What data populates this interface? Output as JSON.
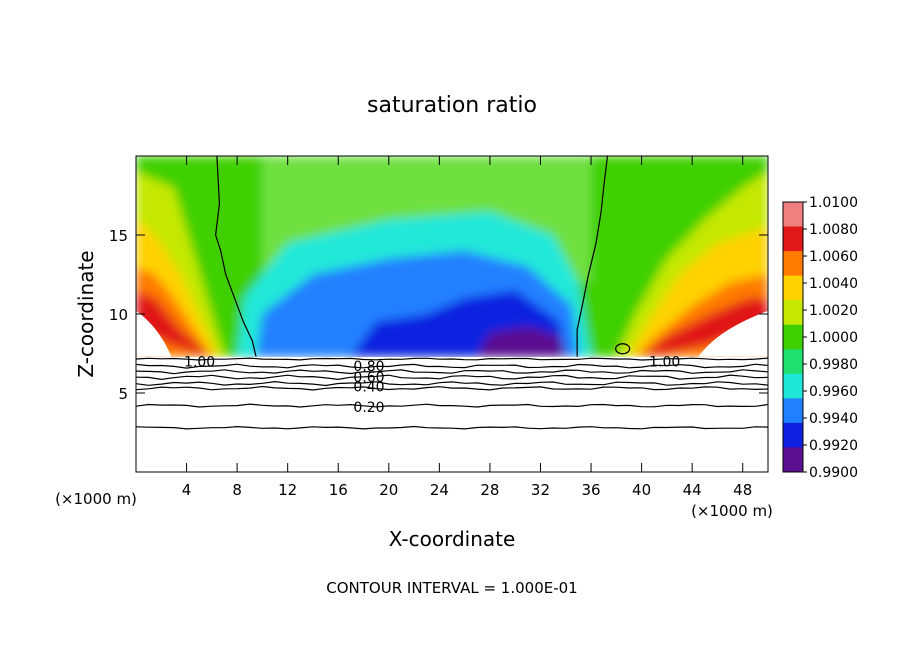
{
  "chart_data": {
    "type": "heatmap",
    "title": "saturation ratio",
    "xlabel": "X-coordinate",
    "ylabel": "Z-coordinate",
    "x_unit": "(×1000 m)",
    "xlim": [
      0,
      50
    ],
    "ylim": [
      0,
      20
    ],
    "x_ticks": [
      4,
      8,
      12,
      16,
      20,
      24,
      28,
      32,
      36,
      40,
      44,
      48
    ],
    "y_ticks": [
      5,
      10,
      15
    ],
    "footer": "CONTOUR INTERVAL = 1.000E-01",
    "colorbar": {
      "labels": [
        "1.0100",
        "1.0080",
        "1.0060",
        "1.0040",
        "1.0020",
        "1.0000",
        "0.9980",
        "0.9960",
        "0.9940",
        "0.9920",
        "0.9900"
      ],
      "colors": [
        "#f08080",
        "#e01818",
        "#ff7a00",
        "#ffd200",
        "#c4e800",
        "#40d000",
        "#20e070",
        "#20e8d8",
        "#2080ff",
        "#1020e0",
        "#5a1090"
      ]
    },
    "contour_labels": [
      {
        "text": "1.00",
        "x": 3.8,
        "z": 7.0
      },
      {
        "text": "0.80",
        "x": 17.2,
        "z": 6.7
      },
      {
        "text": "0.60",
        "x": 17.2,
        "z": 6.0
      },
      {
        "text": "0.40",
        "x": 17.2,
        "z": 5.4
      },
      {
        "text": "0.20",
        "x": 17.2,
        "z": 4.1
      },
      {
        "text": "1.00",
        "x": 40.6,
        "z": 7.0
      }
    ]
  }
}
